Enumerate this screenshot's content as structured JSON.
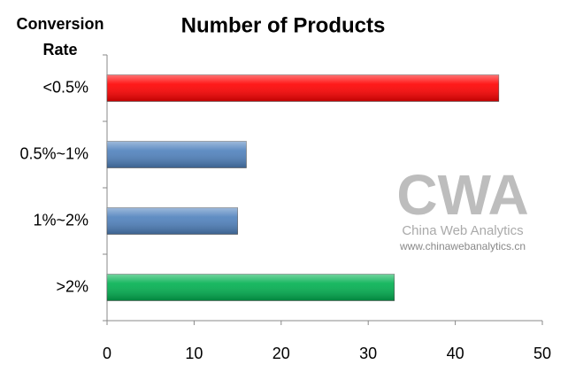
{
  "chart_data": {
    "type": "bar",
    "orientation": "horizontal",
    "title": "Number of Products",
    "ylabel": [
      "Conversion",
      "Rate"
    ],
    "categories": [
      "<0.5%",
      "0.5%~1%",
      "1%~2%",
      ">2%"
    ],
    "values": [
      45,
      16,
      15,
      33
    ],
    "colors": [
      "#ff0000",
      "#4f81bd",
      "#4f81bd",
      "#00b050"
    ],
    "xlim": [
      0,
      50
    ],
    "xticks": [
      0,
      10,
      20,
      30,
      40,
      50
    ],
    "grid": false,
    "watermark": {
      "logo": "CWA",
      "name": "China Web Analytics",
      "url": "www.chinawebanalytics.cn"
    }
  }
}
